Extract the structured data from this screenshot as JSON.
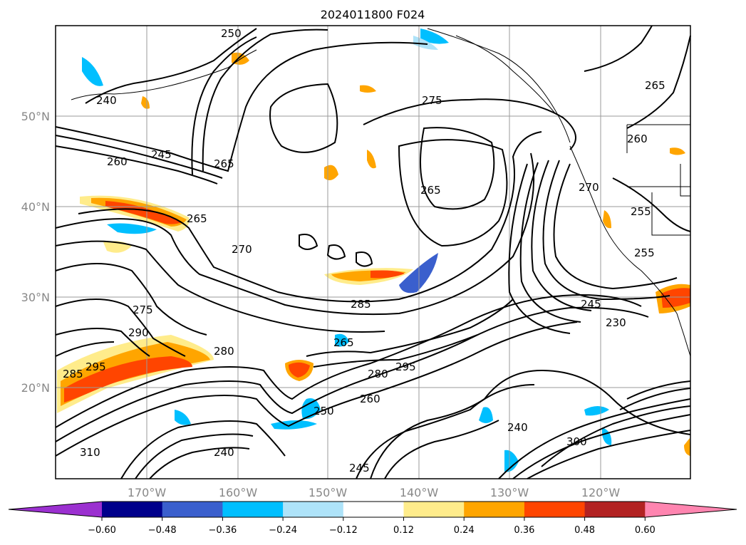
{
  "title": "2024011800 F024",
  "map": {
    "lat_labels": [
      "50°N",
      "40°N",
      "30°N",
      "20°N"
    ],
    "lon_labels": [
      "170°W",
      "160°W",
      "150°W",
      "140°W",
      "130°W",
      "120°W"
    ],
    "contour_labels": [
      "240",
      "250",
      "260",
      "245",
      "265",
      "275",
      "265",
      "265",
      "270",
      "270",
      "275",
      "290",
      "280",
      "265",
      "285",
      "295",
      "280",
      "260",
      "250",
      "240",
      "255",
      "230",
      "245",
      "260",
      "265",
      "255",
      "310",
      "300",
      "245",
      "240",
      "285",
      "295"
    ]
  },
  "colorbar": {
    "ticks": [
      "−0.60",
      "−0.48",
      "−0.36",
      "−0.24",
      "−0.12",
      "0.12",
      "0.24",
      "0.36",
      "0.48",
      "0.60"
    ],
    "colors": [
      "#9b30d0",
      "#00008b",
      "#3a5fcd",
      "#00bfff",
      "#aee3f9",
      "#ffffff",
      "#ffec8b",
      "#ffa500",
      "#ff4500",
      "#b22222",
      "#ff85b0"
    ]
  }
}
